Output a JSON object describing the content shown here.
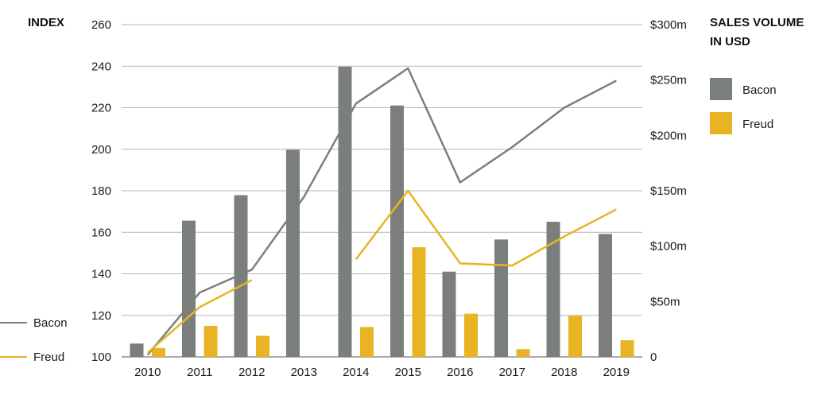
{
  "chart_data": {
    "type": "bar",
    "left_axis_title": "INDEX",
    "right_axis_title_lines": [
      "SALES VOLUME",
      "IN USD"
    ],
    "categories": [
      "2010",
      "2011",
      "2012",
      "2013",
      "2014",
      "2015",
      "2016",
      "2017",
      "2018",
      "2019"
    ],
    "left_axis": {
      "min": 100,
      "max": 260,
      "ticks": [
        100,
        120,
        140,
        160,
        180,
        200,
        220,
        240,
        260
      ]
    },
    "right_axis": {
      "min": 0,
      "max": 300,
      "ticks": [
        0,
        50,
        100,
        150,
        200,
        250,
        300
      ],
      "tick_labels": [
        "0",
        "$50m",
        "$100m",
        "$150m",
        "$200m",
        "$250m",
        "$300m"
      ]
    },
    "bar_series": [
      {
        "name": "Bacon",
        "color": "#7b7f7b",
        "axis": "right",
        "unit": "million USD",
        "values": [
          12,
          123,
          146,
          187,
          262,
          227,
          77,
          106,
          122,
          111
        ]
      },
      {
        "name": "Freud",
        "color": "#e8b423",
        "axis": "right",
        "unit": "million USD",
        "values": [
          8,
          28,
          19,
          null,
          27,
          99,
          39,
          7,
          37,
          15
        ]
      }
    ],
    "line_series": [
      {
        "name": "Bacon",
        "color": "#7b7f7b",
        "axis": "left",
        "values": [
          101,
          131,
          142,
          177,
          222,
          239,
          184,
          201,
          220,
          233
        ]
      },
      {
        "name": "Freud",
        "color": "#e8b423",
        "axis": "left",
        "values": [
          102,
          124,
          137,
          null,
          147,
          180,
          145,
          144,
          158,
          171
        ]
      }
    ],
    "grid": true,
    "bar_legend_position": "top-right",
    "line_legend_position": "bottom-left"
  }
}
